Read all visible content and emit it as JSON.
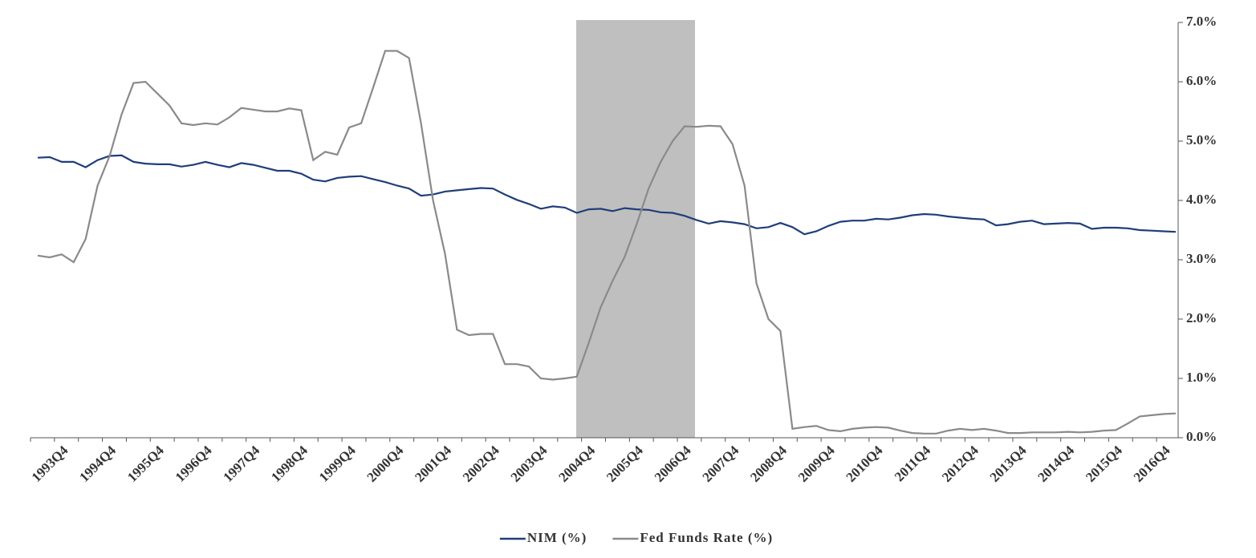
{
  "chart_data": {
    "type": "line",
    "categories": [
      null,
      null,
      "1993Q4",
      null,
      null,
      null,
      "1994Q4",
      null,
      null,
      null,
      "1995Q4",
      null,
      null,
      null,
      "1996Q4",
      null,
      null,
      null,
      "1997Q4",
      null,
      null,
      null,
      "1998Q4",
      null,
      null,
      null,
      "1999Q4",
      null,
      null,
      null,
      "2000Q4",
      null,
      null,
      null,
      "2001Q4",
      null,
      null,
      null,
      "2002Q4",
      null,
      null,
      null,
      "2003Q4",
      null,
      null,
      null,
      "2004Q4",
      null,
      null,
      null,
      "2005Q4",
      null,
      null,
      null,
      "2006Q4",
      null,
      null,
      null,
      "2007Q4",
      null,
      null,
      null,
      "2008Q4",
      null,
      null,
      null,
      "2009Q4",
      null,
      null,
      null,
      "2010Q4",
      null,
      null,
      null,
      "2011Q4",
      null,
      null,
      null,
      "2012Q4",
      null,
      null,
      null,
      "2013Q4",
      null,
      null,
      null,
      "2014Q4",
      null,
      null,
      null,
      "2015Q4",
      null,
      null,
      null,
      "2016Q4",
      null
    ],
    "series": [
      {
        "name": "NIM (%)",
        "color": "#1f3e7a",
        "axis": "y2",
        "values": [
          4.72,
          4.73,
          4.65,
          4.65,
          4.56,
          4.68,
          4.75,
          4.76,
          4.65,
          4.62,
          4.61,
          4.61,
          4.57,
          4.6,
          4.65,
          4.6,
          4.56,
          4.63,
          4.6,
          4.55,
          4.5,
          4.5,
          4.45,
          4.35,
          4.32,
          4.38,
          4.4,
          4.41,
          4.36,
          4.31,
          4.25,
          4.2,
          4.08,
          4.1,
          4.15,
          4.17,
          4.19,
          4.21,
          4.2,
          4.1,
          4.01,
          3.94,
          3.86,
          3.9,
          3.88,
          3.79,
          3.85,
          3.86,
          3.82,
          3.87,
          3.85,
          3.84,
          3.8,
          3.79,
          3.74,
          3.67,
          3.61,
          3.65,
          3.63,
          3.6,
          3.53,
          3.55,
          3.62,
          3.55,
          3.43,
          3.48,
          3.57,
          3.64,
          3.66,
          3.66,
          3.69,
          3.68,
          3.71,
          3.75,
          3.77,
          3.76,
          3.73,
          3.71,
          3.69,
          3.68,
          3.58,
          3.6,
          3.64,
          3.66,
          3.6,
          3.61,
          3.62,
          3.61,
          3.52,
          3.54,
          3.54,
          3.53,
          3.5,
          3.49,
          3.48,
          3.47
        ]
      },
      {
        "name": "Fed Funds Rate (%)",
        "color": "#8a8a8a",
        "axis": "y2",
        "values": [
          3.07,
          3.04,
          3.09,
          2.96,
          3.35,
          4.25,
          4.75,
          5.45,
          5.98,
          6.0,
          5.8,
          5.6,
          5.3,
          5.27,
          5.3,
          5.28,
          5.4,
          5.56,
          5.53,
          5.5,
          5.5,
          5.55,
          5.52,
          4.68,
          4.82,
          4.77,
          5.23,
          5.3,
          5.9,
          6.52,
          6.52,
          6.4,
          5.3,
          4.0,
          3.1,
          1.82,
          1.73,
          1.75,
          1.75,
          1.24,
          1.24,
          1.2,
          1.0,
          0.98,
          1.0,
          1.03,
          1.6,
          2.2,
          2.65,
          3.05,
          3.6,
          4.2,
          4.65,
          5.0,
          5.25,
          5.24,
          5.26,
          5.25,
          4.95,
          4.25,
          2.6,
          2.0,
          1.8,
          0.15,
          0.18,
          0.2,
          0.13,
          0.11,
          0.15,
          0.17,
          0.18,
          0.17,
          0.12,
          0.08,
          0.07,
          0.07,
          0.12,
          0.15,
          0.13,
          0.15,
          0.12,
          0.08,
          0.08,
          0.09,
          0.09,
          0.09,
          0.1,
          0.09,
          0.1,
          0.12,
          0.13,
          0.24,
          0.36,
          0.38,
          0.4,
          0.41
        ]
      }
    ],
    "y2lim": [
      0,
      7
    ],
    "y2ticks": [
      {
        "value": 0,
        "label": "0.0%"
      },
      {
        "value": 1,
        "label": "1.0%"
      },
      {
        "value": 2,
        "label": "2.0%"
      },
      {
        "value": 3,
        "label": "3.0%"
      },
      {
        "value": 4,
        "label": "4.0%"
      },
      {
        "value": 5,
        "label": "5.0%"
      },
      {
        "value": 6,
        "label": "6.0%"
      },
      {
        "value": 7,
        "label": "7.0%"
      }
    ],
    "legend": "bottom"
  }
}
